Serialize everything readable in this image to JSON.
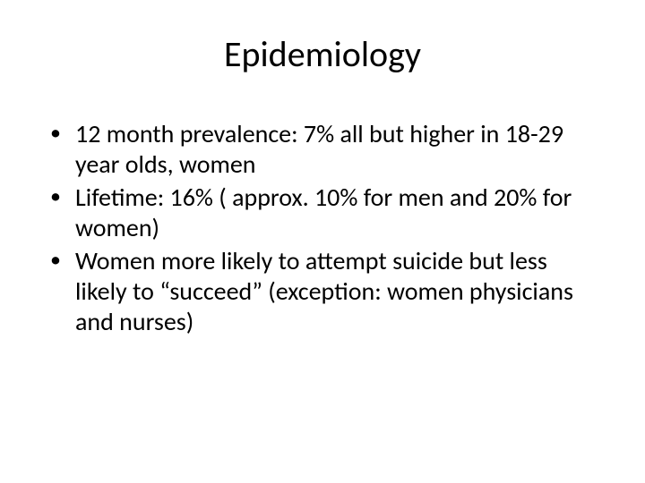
{
  "slide": {
    "title": "Epidemiology",
    "bullets": [
      "12 month prevalence: 7% all but higher in 18-29 year olds, women",
      "Lifetime: 16% ( approx. 10% for men and 20% for women)",
      "Women more likely to attempt suicide but less likely to “succeed” (exception: women physicians and nurses)"
    ],
    "background_color": "#ffffff",
    "text_color": "#000000",
    "title_fontsize": 40,
    "body_fontsize": 28,
    "font_family": "Calibri"
  }
}
